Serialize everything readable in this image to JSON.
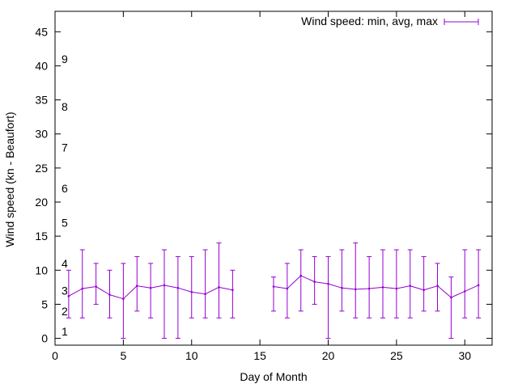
{
  "chart_data": {
    "type": "line",
    "xlabel": "Day of Month",
    "ylabel": "Wind speed (kn - Beaufort)",
    "xlim": [
      0,
      32
    ],
    "ylim": [
      -1,
      48
    ],
    "xticks": [
      "0",
      "5",
      "10",
      "15",
      "20",
      "25",
      "30"
    ],
    "yticks": [
      "0",
      "5",
      "10",
      "15",
      "20",
      "25",
      "30",
      "35",
      "40",
      "45"
    ],
    "grid": false,
    "legend_position": "top-right",
    "beaufort_labels": [
      {
        "text": "1",
        "y": 1
      },
      {
        "text": "2",
        "y": 4
      },
      {
        "text": "3",
        "y": 7
      },
      {
        "text": "4",
        "y": 11
      },
      {
        "text": "5",
        "y": 17
      },
      {
        "text": "6",
        "y": 22
      },
      {
        "text": "7",
        "y": 28
      },
      {
        "text": "8",
        "y": 34
      },
      {
        "text": "9",
        "y": 41
      }
    ],
    "series": [
      {
        "name": "Wind speed: min, avg, max",
        "color": "#9400d3",
        "points": [
          {
            "x": 1,
            "avg": 6.2,
            "min": 3,
            "max": 10
          },
          {
            "x": 2,
            "avg": 7.3,
            "min": 3,
            "max": 13
          },
          {
            "x": 3,
            "avg": 7.6,
            "min": 5,
            "max": 11
          },
          {
            "x": 4,
            "avg": 6.4,
            "min": 3,
            "max": 10
          },
          {
            "x": 5,
            "avg": 5.8,
            "min": 0,
            "max": 11
          },
          {
            "x": 6,
            "avg": 7.7,
            "min": 4,
            "max": 12
          },
          {
            "x": 7,
            "avg": 7.4,
            "min": 3,
            "max": 11
          },
          {
            "x": 8,
            "avg": 7.8,
            "min": 0,
            "max": 13
          },
          {
            "x": 9,
            "avg": 7.4,
            "min": 0,
            "max": 12
          },
          {
            "x": 10,
            "avg": 6.8,
            "min": 3,
            "max": 12
          },
          {
            "x": 11,
            "avg": 6.5,
            "min": 3,
            "max": 13
          },
          {
            "x": 12,
            "avg": 7.5,
            "min": 3,
            "max": 14
          },
          {
            "x": 13,
            "avg": 7.1,
            "min": 3,
            "max": 10
          },
          {
            "x": 16,
            "avg": 7.6,
            "min": 4,
            "max": 9
          },
          {
            "x": 17,
            "avg": 7.3,
            "min": 3,
            "max": 11
          },
          {
            "x": 18,
            "avg": 9.2,
            "min": 4,
            "max": 13
          },
          {
            "x": 19,
            "avg": 8.3,
            "min": 5,
            "max": 12
          },
          {
            "x": 20,
            "avg": 8.0,
            "min": 0,
            "max": 12
          },
          {
            "x": 21,
            "avg": 7.4,
            "min": 4,
            "max": 13
          },
          {
            "x": 22,
            "avg": 7.2,
            "min": 3,
            "max": 14
          },
          {
            "x": 23,
            "avg": 7.3,
            "min": 3,
            "max": 12
          },
          {
            "x": 24,
            "avg": 7.5,
            "min": 3,
            "max": 13
          },
          {
            "x": 25,
            "avg": 7.3,
            "min": 3,
            "max": 13
          },
          {
            "x": 26,
            "avg": 7.7,
            "min": 3,
            "max": 13
          },
          {
            "x": 27,
            "avg": 7.1,
            "min": 4,
            "max": 12
          },
          {
            "x": 28,
            "avg": 7.7,
            "min": 4,
            "max": 11
          },
          {
            "x": 29,
            "avg": 6.0,
            "min": 0,
            "max": 9
          },
          {
            "x": 30,
            "avg": 6.9,
            "min": 3,
            "max": 13
          },
          {
            "x": 31,
            "avg": 7.8,
            "min": 3,
            "max": 13
          }
        ]
      }
    ]
  }
}
